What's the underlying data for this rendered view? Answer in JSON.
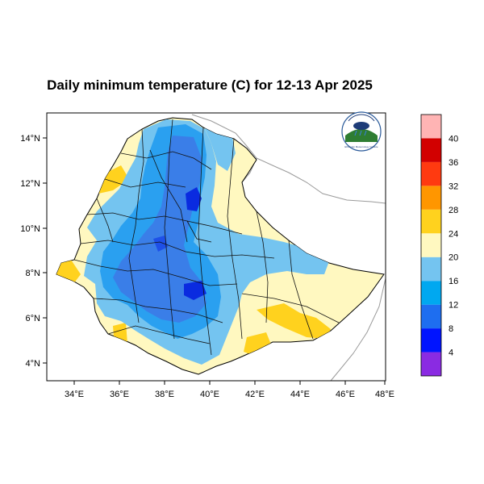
{
  "title": "Daily minimum temperature (C) for 12-13 Apr 2025",
  "map": {
    "lon_range": [
      33,
      48
    ],
    "lat_range": [
      3.2,
      15.2
    ],
    "x_ticks": [
      "34°E",
      "36°E",
      "38°E",
      "40°E",
      "42°E",
      "44°E",
      "46°E",
      "48°E"
    ],
    "y_ticks": [
      "4°N",
      "6°N",
      "8°N",
      "10°N",
      "12°N",
      "14°N"
    ]
  },
  "colorbar": {
    "levels": [
      "4",
      "8",
      "12",
      "16",
      "20",
      "24",
      "28",
      "32",
      "36",
      "40"
    ],
    "colors": [
      "#8a2be2",
      "#0014ff",
      "#1e6ef0",
      "#00a8f0",
      "#74c4f0",
      "#fff8c0",
      "#ffd21e",
      "#ff9600",
      "#ff3a10",
      "#d20000",
      "#ffb4b4"
    ]
  },
  "logo": {
    "name": "agency-logo",
    "caption": "Ethiopian Meteorology Institute"
  }
}
